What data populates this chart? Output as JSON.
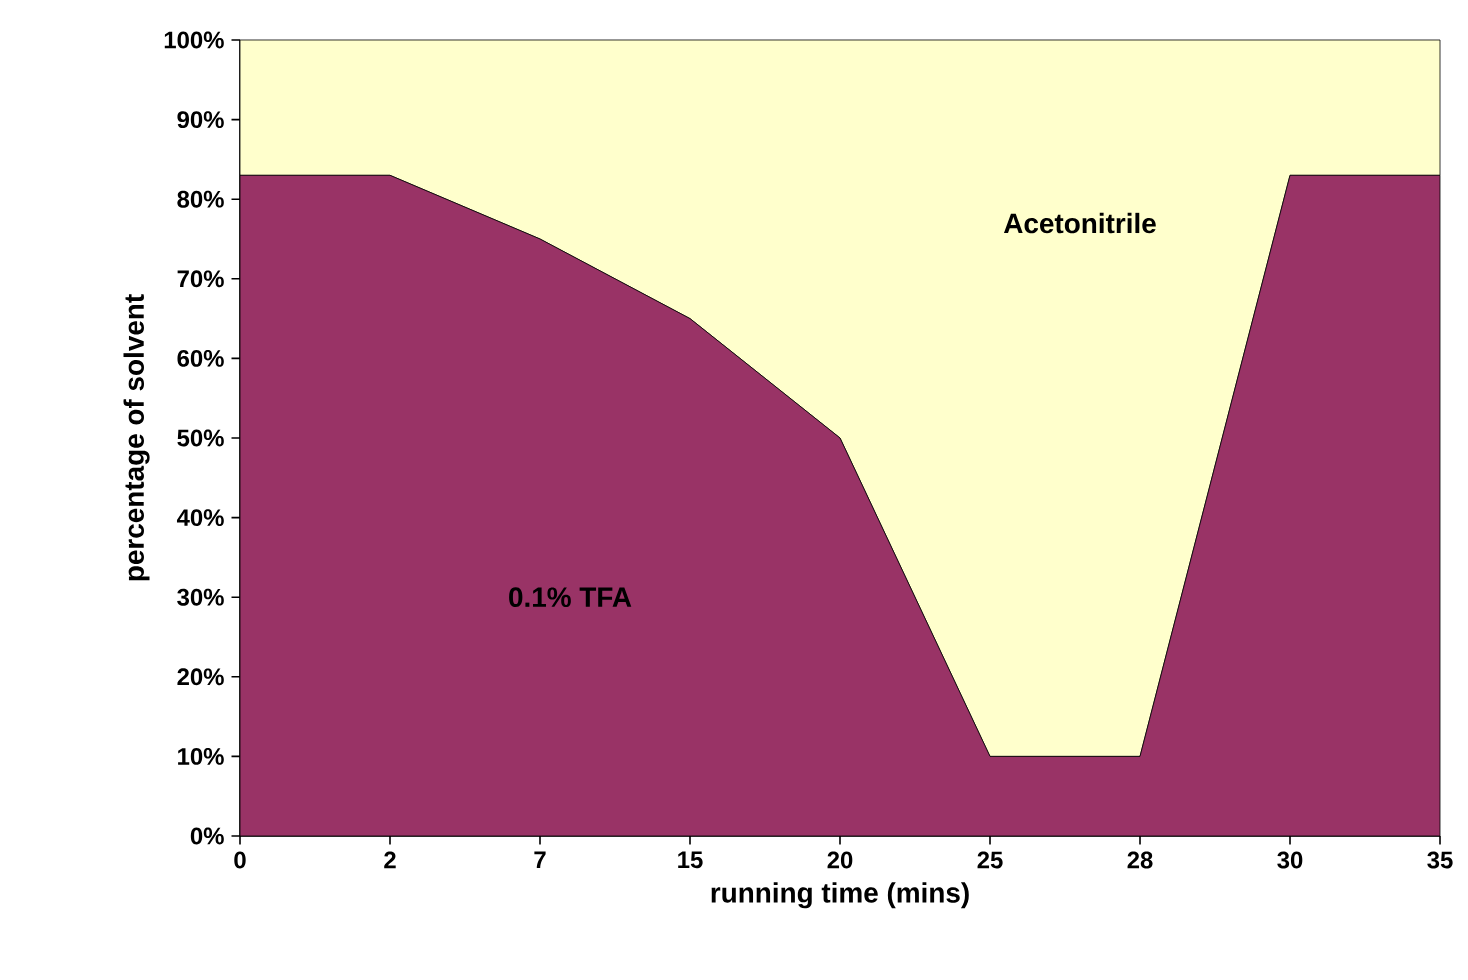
{
  "chart_data": {
    "type": "area",
    "stacked": true,
    "xlabel": "running time (mins)",
    "ylabel": "percentage of solvent",
    "categories": [
      "0",
      "2",
      "7",
      "15",
      "20",
      "25",
      "28",
      "30",
      "35"
    ],
    "series": [
      {
        "name": "0.1% TFA",
        "color": "#993366",
        "values": [
          83,
          83,
          75,
          65,
          50,
          10,
          10,
          83,
          83
        ]
      },
      {
        "name": "Acetonitrile",
        "color": "#ffffcc",
        "values": [
          17,
          17,
          25,
          35,
          50,
          90,
          90,
          17,
          17
        ]
      }
    ],
    "ylim": [
      0,
      100
    ],
    "yticks": [
      {
        "value": 0,
        "label": "0%"
      },
      {
        "value": 10,
        "label": "10%"
      },
      {
        "value": 20,
        "label": "20%"
      },
      {
        "value": 30,
        "label": "30%"
      },
      {
        "value": 40,
        "label": "40%"
      },
      {
        "value": 50,
        "label": "50%"
      },
      {
        "value": 60,
        "label": "60%"
      },
      {
        "value": 70,
        "label": "70%"
      },
      {
        "value": 80,
        "label": "80%"
      },
      {
        "value": 90,
        "label": "90%"
      },
      {
        "value": 100,
        "label": "100%"
      }
    ],
    "grid": false,
    "legend": false
  }
}
